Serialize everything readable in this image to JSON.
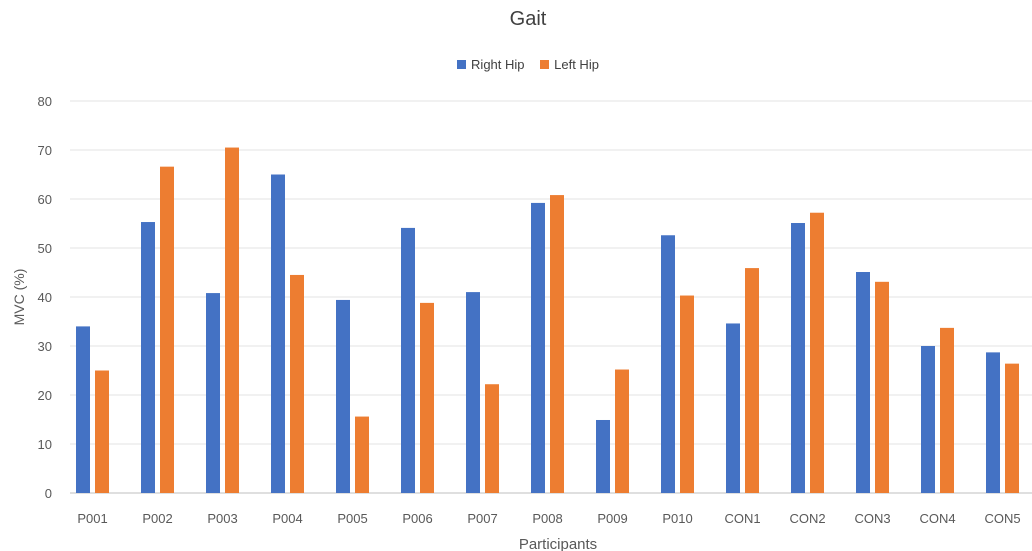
{
  "chart_data": {
    "type": "bar",
    "title": "Gait",
    "xlabel": "Participants",
    "ylabel": "MVC (%)",
    "ylim": [
      0,
      80
    ],
    "yticks": [
      0,
      10,
      20,
      30,
      40,
      50,
      60,
      70,
      80
    ],
    "grid": true,
    "legend_position": "top",
    "categories": [
      "P001",
      "P002",
      "P003",
      "P004",
      "P005",
      "P006",
      "P007",
      "P008",
      "P009",
      "P010",
      "CON1",
      "CON2",
      "CON3",
      "CON4",
      "CON5"
    ],
    "series": [
      {
        "name": "Right Hip",
        "color": "#4472C4",
        "values": [
          34,
          55.3,
          40.8,
          65,
          39.4,
          54.1,
          41,
          59.2,
          14.9,
          52.6,
          34.6,
          55.1,
          45.1,
          30,
          28.7
        ]
      },
      {
        "name": "Left Hip",
        "color": "#ED7D31",
        "values": [
          25,
          66.6,
          70.5,
          44.5,
          15.6,
          38.8,
          22.2,
          60.8,
          25.2,
          40.3,
          45.9,
          57.2,
          43.1,
          33.7,
          26.4
        ]
      }
    ]
  }
}
